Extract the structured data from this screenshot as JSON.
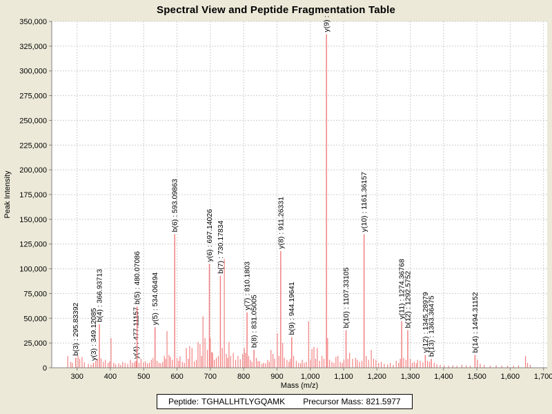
{
  "title": "Spectral View and Peptide Fragmentation Table",
  "footer": {
    "peptide_label": "Peptide:",
    "peptide": "TGHALLHTLYGQAMK",
    "precursor_label": "Precursor Mass:",
    "precursor_mass": "821.5977"
  },
  "colors": {
    "background": "#ece9d8",
    "plot_background": "#ffffff",
    "grid": "#cdcdcd",
    "axis": "#808080",
    "tick_text": "#000000",
    "peak": "#f28080",
    "label_text": "#000000"
  },
  "chart_data": {
    "type": "bar",
    "title": "Spectral View and Peptide Fragmentation Table",
    "xlabel": "Mass (m/z)",
    "ylabel": "Peak Intensity",
    "xlim": [
      224,
      1711
    ],
    "ylim": [
      0,
      350000
    ],
    "x_ticks": [
      300,
      400,
      500,
      600,
      700,
      800,
      900,
      1000,
      1100,
      1200,
      1300,
      1400,
      1500,
      1600,
      1700
    ],
    "y_ticks": [
      0,
      25000,
      50000,
      75000,
      100000,
      125000,
      150000,
      175000,
      200000,
      225000,
      250000,
      275000,
      300000,
      325000,
      350000
    ],
    "grid": true,
    "legend": "none",
    "peak_color": "#f28080",
    "labeled_peaks": [
      {
        "ion": "b3",
        "mz": 295.83392,
        "intensity": 10000,
        "label": "b(3) : 295.83392"
      },
      {
        "ion": "y3",
        "mz": 349.12085,
        "intensity": 5000,
        "label": "y(3) : 349.12085"
      },
      {
        "ion": "b4",
        "mz": 366.93713,
        "intensity": 44000,
        "label": "b(4) : 366.93713"
      },
      {
        "ion": "y4",
        "mz": 477.11157,
        "intensity": 7000,
        "label": "y(4) : 477.11157"
      },
      {
        "ion": "b5",
        "mz": 480.07086,
        "intensity": 62000,
        "label": "b(5) : 480.07086"
      },
      {
        "ion": "y5",
        "mz": 534.06494,
        "intensity": 41000,
        "label": "y(5) : 534.06494"
      },
      {
        "ion": "b6",
        "mz": 593.09863,
        "intensity": 135000,
        "label": "b(6) : 593.09863"
      },
      {
        "ion": "y6",
        "mz": 697.14026,
        "intensity": 105000,
        "label": "y(6) : 697.14026"
      },
      {
        "ion": "b7",
        "mz": 730.17834,
        "intensity": 93000,
        "label": "b(7) : 730.17834"
      },
      {
        "ion": "y7",
        "mz": 810.1803,
        "intensity": 56000,
        "label": "y(7) : 810.1803"
      },
      {
        "ion": "b8",
        "mz": 831.05005,
        "intensity": 18000,
        "label": "b(8) : 831.05005"
      },
      {
        "ion": "y8",
        "mz": 911.26331,
        "intensity": 118000,
        "label": "y(8) : 911.26331"
      },
      {
        "ion": "b9",
        "mz": 944.19641,
        "intensity": 31000,
        "label": "b(9) : 944.19641"
      },
      {
        "ion": "y9",
        "mz": 1048.5,
        "intensity": 337000,
        "label": "y(9) :"
      },
      {
        "ion": "b10",
        "mz": 1107.33105,
        "intensity": 38000,
        "label": "b(10) : 1107.33105"
      },
      {
        "ion": "y10",
        "mz": 1161.36157,
        "intensity": 135000,
        "label": "y(10) : 1161.36157"
      },
      {
        "ion": "y11",
        "mz": 1274.36768,
        "intensity": 47000,
        "label": "y(11) : 1274.36768"
      },
      {
        "ion": "b12",
        "mz": 1292.5752,
        "intensity": 38000,
        "label": "b(12) : 1292.5752"
      },
      {
        "ion": "y12",
        "mz": 1345.28979,
        "intensity": 13000,
        "label": "y(12) : 1345.28979"
      },
      {
        "ion": "b13",
        "mz": 1363.36475,
        "intensity": 9000,
        "label": "b(13) : 1363.36475"
      },
      {
        "ion": "b14",
        "mz": 1494.31152,
        "intensity": 13000,
        "label": "b(14) : 1494.31152"
      }
    ],
    "noise_peaks": [
      [
        272,
        12000
      ],
      [
        281,
        6000
      ],
      [
        286,
        5000
      ],
      [
        303,
        12000
      ],
      [
        308,
        9000
      ],
      [
        315,
        11000
      ],
      [
        322,
        5500
      ],
      [
        334,
        4000
      ],
      [
        342,
        3000
      ],
      [
        356,
        7000
      ],
      [
        361,
        9000
      ],
      [
        372,
        9500
      ],
      [
        379,
        6000
      ],
      [
        385,
        8000
      ],
      [
        393,
        5000
      ],
      [
        398,
        6500
      ],
      [
        402,
        30000
      ],
      [
        410,
        5000
      ],
      [
        416,
        3500
      ],
      [
        425,
        4500
      ],
      [
        431,
        3000
      ],
      [
        437,
        6000
      ],
      [
        444,
        5000
      ],
      [
        452,
        4000
      ],
      [
        460,
        8000
      ],
      [
        466,
        5000
      ],
      [
        472,
        6000
      ],
      [
        486,
        5000
      ],
      [
        492,
        9000
      ],
      [
        499,
        5500
      ],
      [
        505,
        6500
      ],
      [
        511,
        4500
      ],
      [
        517,
        5000
      ],
      [
        523,
        8000
      ],
      [
        528,
        10000
      ],
      [
        540,
        7000
      ],
      [
        546,
        5000
      ],
      [
        551,
        4500
      ],
      [
        557,
        6000
      ],
      [
        562,
        12000
      ],
      [
        566,
        9000
      ],
      [
        570,
        37000
      ],
      [
        576,
        13000
      ],
      [
        580,
        11000
      ],
      [
        586,
        8000
      ],
      [
        600,
        10000
      ],
      [
        605,
        7000
      ],
      [
        609,
        11500
      ],
      [
        616,
        6000
      ],
      [
        622,
        5000
      ],
      [
        628,
        20000
      ],
      [
        634,
        9000
      ],
      [
        638,
        22000
      ],
      [
        645,
        20000
      ],
      [
        652,
        6500
      ],
      [
        658,
        8000
      ],
      [
        663,
        26000
      ],
      [
        669,
        24000
      ],
      [
        674,
        12000
      ],
      [
        678,
        52000
      ],
      [
        684,
        30000
      ],
      [
        691,
        18000
      ],
      [
        700,
        30000
      ],
      [
        704,
        16000
      ],
      [
        707,
        15000
      ],
      [
        712,
        8000
      ],
      [
        718,
        10000
      ],
      [
        724,
        12000
      ],
      [
        736,
        20000
      ],
      [
        742,
        110000
      ],
      [
        748,
        14000
      ],
      [
        752,
        10000
      ],
      [
        756,
        26000
      ],
      [
        761,
        12000
      ],
      [
        769,
        15000
      ],
      [
        776,
        8000
      ],
      [
        783,
        12000
      ],
      [
        790,
        8500
      ],
      [
        797,
        14000
      ],
      [
        802,
        20000
      ],
      [
        806,
        15000
      ],
      [
        815,
        12000
      ],
      [
        820,
        8000
      ],
      [
        825,
        6000
      ],
      [
        838,
        10000
      ],
      [
        843,
        7000
      ],
      [
        848,
        6500
      ],
      [
        855,
        4000
      ],
      [
        860,
        5000
      ],
      [
        866,
        4500
      ],
      [
        872,
        8000
      ],
      [
        877,
        6000
      ],
      [
        882,
        18000
      ],
      [
        888,
        14000
      ],
      [
        893,
        9000
      ],
      [
        901,
        35000
      ],
      [
        906,
        12000
      ],
      [
        917,
        25000
      ],
      [
        922,
        10000
      ],
      [
        930,
        8000
      ],
      [
        936,
        6000
      ],
      [
        940,
        9000
      ],
      [
        950,
        12000
      ],
      [
        958,
        7000
      ],
      [
        965,
        5000
      ],
      [
        971,
        4500
      ],
      [
        976,
        8000
      ],
      [
        982,
        5000
      ],
      [
        988,
        6000
      ],
      [
        995,
        47000
      ],
      [
        1000,
        8000
      ],
      [
        1005,
        19000
      ],
      [
        1011,
        21000
      ],
      [
        1016,
        9000
      ],
      [
        1021,
        20000
      ],
      [
        1028,
        7000
      ],
      [
        1035,
        12000
      ],
      [
        1041,
        9000
      ],
      [
        1052,
        30000
      ],
      [
        1058,
        8000
      ],
      [
        1065,
        6000
      ],
      [
        1071,
        5000
      ],
      [
        1077,
        11000
      ],
      [
        1083,
        12000
      ],
      [
        1090,
        6000
      ],
      [
        1096,
        5000
      ],
      [
        1101,
        8000
      ],
      [
        1113,
        9000
      ],
      [
        1118,
        15000
      ],
      [
        1127,
        9000
      ],
      [
        1136,
        10000
      ],
      [
        1141,
        8000
      ],
      [
        1148,
        6000
      ],
      [
        1155,
        7000
      ],
      [
        1168,
        12000
      ],
      [
        1175,
        8000
      ],
      [
        1183,
        18000
      ],
      [
        1190,
        9000
      ],
      [
        1197,
        8000
      ],
      [
        1205,
        5000
      ],
      [
        1213,
        6000
      ],
      [
        1222,
        4000
      ],
      [
        1232,
        3500
      ],
      [
        1240,
        5000
      ],
      [
        1249,
        3000
      ],
      [
        1258,
        7000
      ],
      [
        1265,
        5000
      ],
      [
        1270,
        9000
      ],
      [
        1280,
        10000
      ],
      [
        1287,
        8000
      ],
      [
        1300,
        9000
      ],
      [
        1306,
        5000
      ],
      [
        1312,
        6000
      ],
      [
        1318,
        4500
      ],
      [
        1322,
        8000
      ],
      [
        1330,
        7000
      ],
      [
        1338,
        5500
      ],
      [
        1352,
        7000
      ],
      [
        1358,
        6000
      ],
      [
        1372,
        5000
      ],
      [
        1380,
        3500
      ],
      [
        1390,
        3000
      ],
      [
        1402,
        2500
      ],
      [
        1415,
        2000
      ],
      [
        1428,
        2500
      ],
      [
        1440,
        2000
      ],
      [
        1455,
        3000
      ],
      [
        1468,
        2500
      ],
      [
        1480,
        2000
      ],
      [
        1502,
        8000
      ],
      [
        1510,
        4000
      ],
      [
        1522,
        3000
      ],
      [
        1540,
        2000
      ],
      [
        1558,
        2500
      ],
      [
        1575,
        2000
      ],
      [
        1592,
        2200
      ],
      [
        1610,
        2000
      ],
      [
        1625,
        2500
      ],
      [
        1646,
        12000
      ],
      [
        1652,
        5000
      ],
      [
        1660,
        3000
      ]
    ]
  }
}
